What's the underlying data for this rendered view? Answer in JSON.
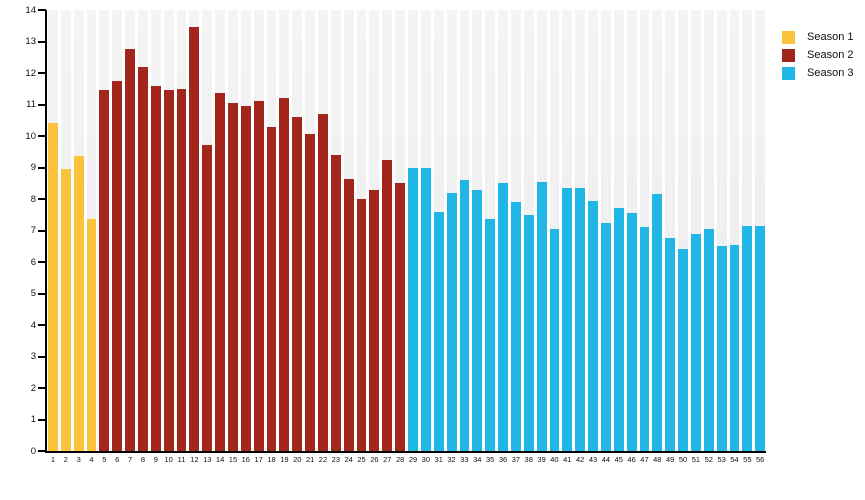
{
  "chart_data": {
    "type": "bar",
    "title": "",
    "xlabel": "",
    "ylabel": "",
    "ylim": [
      0,
      14
    ],
    "yticks": [
      0,
      1,
      2,
      3,
      4,
      5,
      6,
      7,
      8,
      9,
      10,
      11,
      12,
      13,
      14
    ],
    "grid": "column-bands",
    "legend_position": "top-right",
    "band_color_top": "#f4f4f4",
    "band_color_bottom": "#ebebeb",
    "axis_color": "#000000",
    "text_color": "#111111",
    "categories": [
      "1",
      "2",
      "3",
      "4",
      "5",
      "6",
      "7",
      "8",
      "9",
      "10",
      "11",
      "12",
      "13",
      "14",
      "15",
      "16",
      "17",
      "18",
      "19",
      "20",
      "21",
      "22",
      "23",
      "24",
      "25",
      "26",
      "27",
      "28",
      "29",
      "30",
      "31",
      "32",
      "33",
      "34",
      "35",
      "36",
      "37",
      "38",
      "39",
      "40",
      "41",
      "42",
      "43",
      "44",
      "45",
      "46",
      "47",
      "48",
      "49",
      "50",
      "51",
      "52",
      "53",
      "54",
      "55",
      "56"
    ],
    "series": [
      {
        "name": "Season 1",
        "color": "#FBC23C",
        "episodes": [
          1,
          2,
          3,
          4
        ],
        "values": [
          10.4,
          8.95,
          9.35,
          7.35
        ]
      },
      {
        "name": "Season 2",
        "color": "#A2261C",
        "episodes": [
          5,
          6,
          7,
          8,
          9,
          10,
          11,
          12,
          13,
          14,
          15,
          16,
          17,
          18,
          19,
          20,
          21,
          22,
          23,
          24,
          25,
          26,
          27,
          28
        ],
        "values": [
          11.45,
          11.75,
          12.75,
          12.2,
          11.6,
          11.45,
          11.5,
          13.45,
          9.7,
          11.35,
          11.05,
          10.95,
          11.1,
          10.3,
          11.2,
          10.6,
          10.05,
          10.7,
          9.4,
          8.65,
          8.0,
          8.3,
          9.25,
          8.5
        ]
      },
      {
        "name": "Season 3",
        "color": "#20B6E6",
        "episodes": [
          29,
          30,
          31,
          32,
          33,
          34,
          35,
          36,
          37,
          38,
          39,
          40,
          41,
          42,
          43,
          44,
          45,
          46,
          47,
          48,
          49,
          50,
          51,
          52,
          53,
          54,
          55,
          56
        ],
        "values": [
          9.0,
          9.0,
          7.6,
          8.2,
          8.6,
          8.3,
          7.35,
          8.5,
          7.9,
          7.5,
          8.55,
          7.05,
          8.35,
          8.35,
          7.95,
          7.25,
          7.7,
          7.55,
          7.1,
          8.15,
          6.75,
          6.4,
          6.9,
          7.05,
          6.5,
          6.55,
          7.15,
          7.15
        ]
      }
    ],
    "legend": {
      "items": [
        {
          "label": "Season 1",
          "color": "#FBC23C"
        },
        {
          "label": "Season 2",
          "color": "#A2261C"
        },
        {
          "label": "Season 3",
          "color": "#20B6E6"
        }
      ]
    }
  }
}
